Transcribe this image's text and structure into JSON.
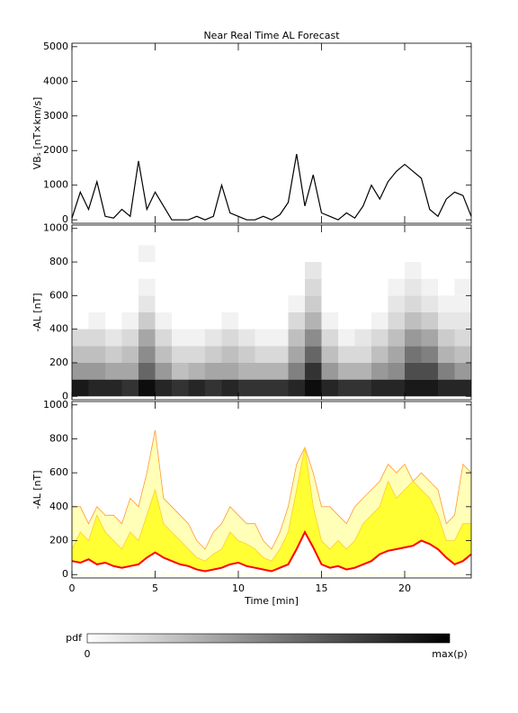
{
  "chart_data": [
    {
      "type": "line",
      "title": "Near Real Time AL Forecast",
      "ylabel": "VBₛ [nT×km/s]",
      "ylim": [
        -100,
        5100
      ],
      "yticks": [
        0,
        1000,
        2000,
        3000,
        4000,
        5000
      ],
      "color": "#000000",
      "x": [
        0,
        0.5,
        1,
        1.5,
        2,
        2.5,
        3,
        3.5,
        4,
        4.5,
        5,
        5.5,
        6,
        6.5,
        7,
        7.5,
        8,
        8.5,
        9,
        9.5,
        10,
        10.5,
        11,
        11.5,
        12,
        12.5,
        13,
        13.5,
        14,
        14.5,
        15,
        15.5,
        16,
        16.5,
        17,
        17.5,
        18,
        18.5,
        19,
        19.5,
        20,
        20.5,
        21,
        21.5,
        22,
        22.5,
        23,
        23.5,
        24
      ],
      "values": [
        50,
        800,
        300,
        1100,
        100,
        50,
        300,
        100,
        1700,
        300,
        800,
        400,
        0,
        0,
        0,
        100,
        0,
        100,
        1000,
        200,
        100,
        0,
        0,
        100,
        0,
        150,
        500,
        1900,
        400,
        1300,
        200,
        100,
        0,
        200,
        50,
        400,
        1000,
        600,
        1100,
        1400,
        1600,
        1400,
        1200,
        300,
        100,
        600,
        800,
        700,
        100
      ]
    },
    {
      "type": "heatmap",
      "ylabel": "-AL [nT]",
      "ylim": [
        -20,
        1020
      ],
      "yticks": [
        0,
        200,
        400,
        600,
        800,
        1000
      ],
      "x_edges": [
        0,
        1,
        2,
        3,
        4,
        5,
        6,
        7,
        8,
        9,
        10,
        11,
        12,
        13,
        14,
        15,
        16,
        17,
        18,
        19,
        20,
        21,
        22,
        23,
        24
      ],
      "y_edges": [
        0,
        100,
        200,
        300,
        400,
        500,
        600,
        700,
        800,
        900,
        1000
      ],
      "z": [
        [
          0.9,
          0.85,
          0.85,
          0.8,
          0.95,
          0.85,
          0.8,
          0.85,
          0.8,
          0.85,
          0.8,
          0.8,
          0.8,
          0.85,
          0.95,
          0.85,
          0.8,
          0.8,
          0.85,
          0.85,
          0.9,
          0.9,
          0.85,
          0.85
        ],
        [
          0.4,
          0.4,
          0.35,
          0.35,
          0.6,
          0.4,
          0.25,
          0.3,
          0.35,
          0.35,
          0.3,
          0.3,
          0.3,
          0.5,
          0.8,
          0.4,
          0.3,
          0.3,
          0.4,
          0.45,
          0.7,
          0.7,
          0.5,
          0.4
        ],
        [
          0.25,
          0.25,
          0.2,
          0.25,
          0.45,
          0.25,
          0.15,
          0.15,
          0.2,
          0.25,
          0.2,
          0.15,
          0.15,
          0.35,
          0.6,
          0.25,
          0.15,
          0.15,
          0.25,
          0.35,
          0.55,
          0.5,
          0.3,
          0.25
        ],
        [
          0.15,
          0.15,
          0.1,
          0.15,
          0.35,
          0.15,
          0.05,
          0.05,
          0.1,
          0.15,
          0.1,
          0.05,
          0.05,
          0.25,
          0.45,
          0.15,
          0.05,
          0.1,
          0.15,
          0.25,
          0.4,
          0.35,
          0.2,
          0.15
        ],
        [
          0,
          0.05,
          0,
          0.05,
          0.2,
          0.05,
          0,
          0,
          0,
          0.05,
          0,
          0,
          0,
          0.15,
          0.3,
          0.05,
          0,
          0,
          0.05,
          0.15,
          0.25,
          0.2,
          0.1,
          0.1
        ],
        [
          0,
          0,
          0,
          0,
          0.1,
          0,
          0,
          0,
          0,
          0,
          0,
          0,
          0,
          0.05,
          0.2,
          0,
          0,
          0,
          0,
          0.1,
          0.15,
          0.1,
          0.05,
          0.05
        ],
        [
          0,
          0,
          0,
          0,
          0.05,
          0,
          0,
          0,
          0,
          0,
          0,
          0,
          0,
          0,
          0.15,
          0,
          0,
          0,
          0,
          0.05,
          0.1,
          0.05,
          0,
          0.05
        ],
        [
          0,
          0,
          0,
          0,
          0,
          0,
          0,
          0,
          0,
          0,
          0,
          0,
          0,
          0,
          0.1,
          0,
          0,
          0,
          0,
          0,
          0.05,
          0,
          0,
          0
        ],
        [
          0,
          0,
          0,
          0,
          0.05,
          0,
          0,
          0,
          0,
          0,
          0,
          0,
          0,
          0,
          0,
          0,
          0,
          0,
          0,
          0,
          0,
          0,
          0,
          0
        ],
        [
          0,
          0,
          0,
          0,
          0,
          0,
          0,
          0,
          0,
          0,
          0,
          0,
          0,
          0,
          0,
          0,
          0,
          0,
          0,
          0,
          0,
          0,
          0,
          0
        ]
      ],
      "colorbar": {
        "label": "pdf",
        "min_label": "0",
        "max_label": "max(p)"
      }
    },
    {
      "type": "area",
      "ylabel": "-AL [nT]",
      "xlabel": "Time [min]",
      "xlim": [
        0,
        24
      ],
      "xticks": [
        0,
        5,
        10,
        15,
        20
      ],
      "ylim": [
        -20,
        1020
      ],
      "yticks": [
        0,
        200,
        400,
        600,
        800,
        1000
      ],
      "x": [
        0,
        0.5,
        1,
        1.5,
        2,
        2.5,
        3,
        3.5,
        4,
        4.5,
        5,
        5.5,
        6,
        6.5,
        7,
        7.5,
        8,
        8.5,
        9,
        9.5,
        10,
        10.5,
        11,
        11.5,
        12,
        12.5,
        13,
        13.5,
        14,
        14.5,
        15,
        15.5,
        16,
        16.5,
        17,
        17.5,
        18,
        18.5,
        19,
        19.5,
        20,
        20.5,
        21,
        21.5,
        22,
        22.5,
        23,
        23.5,
        24
      ],
      "series": [
        {
          "color": "#ff9933",
          "fill": "#ffffb8",
          "values": [
            400,
            400,
            300,
            400,
            350,
            350,
            300,
            450,
            400,
            600,
            850,
            450,
            400,
            350,
            300,
            200,
            150,
            250,
            300,
            400,
            350,
            300,
            300,
            200,
            150,
            250,
            400,
            650,
            750,
            600,
            400,
            400,
            350,
            300,
            400,
            450,
            500,
            550,
            650,
            600,
            650,
            550,
            600,
            550,
            500,
            300,
            350,
            650,
            600
          ]
        },
        {
          "color": "#ffcc33",
          "fill": "#ffff33",
          "values": [
            150,
            250,
            200,
            350,
            250,
            200,
            150,
            250,
            200,
            350,
            500,
            300,
            250,
            200,
            150,
            100,
            80,
            120,
            150,
            250,
            200,
            180,
            150,
            100,
            80,
            150,
            250,
            500,
            750,
            400,
            200,
            150,
            200,
            150,
            200,
            300,
            350,
            400,
            550,
            450,
            500,
            550,
            500,
            450,
            350,
            200,
            200,
            300,
            300
          ]
        },
        {
          "color": "#ff0000",
          "fill": "#ffffff",
          "values": [
            80,
            70,
            90,
            60,
            70,
            50,
            40,
            50,
            60,
            100,
            130,
            100,
            80,
            60,
            50,
            30,
            20,
            30,
            40,
            60,
            70,
            50,
            40,
            30,
            20,
            40,
            60,
            150,
            250,
            160,
            60,
            40,
            50,
            30,
            40,
            60,
            80,
            120,
            140,
            150,
            160,
            170,
            200,
            180,
            150,
            100,
            60,
            80,
            120
          ]
        }
      ]
    }
  ]
}
